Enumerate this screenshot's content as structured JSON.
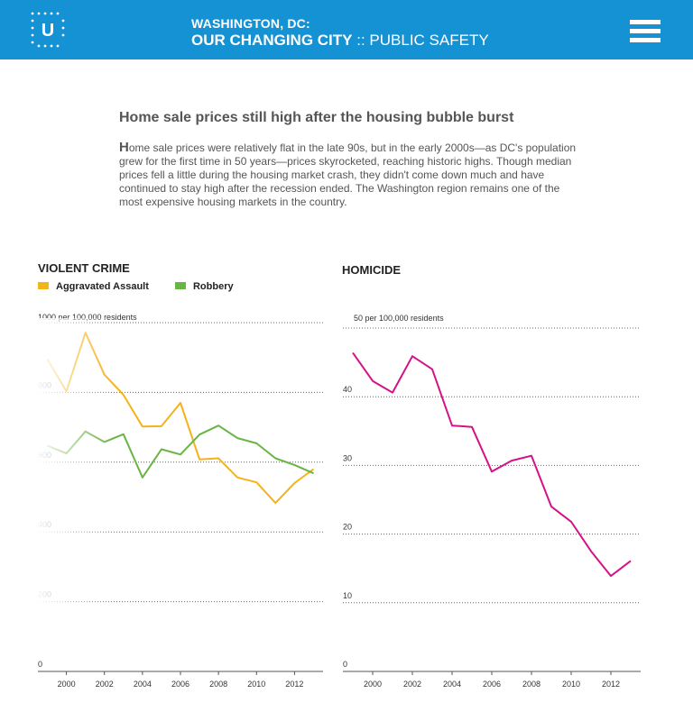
{
  "header": {
    "logo_letter": "U",
    "line1": "WASHINGTON, DC:",
    "line2_bold": "OUR CHANGING CITY",
    "line2_sep": " :: ",
    "line2_section": "PUBLIC SAFETY",
    "menu_icon": "hamburger-icon"
  },
  "article": {
    "title": "Home sale prices still high after the housing bubble burst",
    "dropcap": "H",
    "body": "ome sale prices were relatively flat in the late 90s, but in the early 2000s—as DC's population grew for the first time in 50 years—prices skyrocketed, reaching historic highs. Though median prices fell a little during the housing market crash, they didn't come down much and have continued to stay high after the recession ended. The Washington region remains one of the most expensive housing markets in the country."
  },
  "chart_data": [
    {
      "type": "line",
      "title": "VIOLENT CRIME",
      "ylabel": "1000 per 100,000 residents",
      "ylim": [
        0,
        1000
      ],
      "yticks": [
        "0",
        "200",
        "400",
        "600",
        "800"
      ],
      "xticks": [
        "2000",
        "2002",
        "2004",
        "2006",
        "2008",
        "2010",
        "2012"
      ],
      "xlim": [
        1998.5,
        2013.5
      ],
      "legend": "top-left",
      "series": [
        {
          "name": "Aggravated Assault",
          "color": "#f5b21b",
          "x": [
            1999,
            2000,
            2001,
            2002,
            2003,
            2004,
            2005,
            2006,
            2007,
            2008,
            2009,
            2010,
            2011,
            2012,
            2013
          ],
          "y": [
            895,
            803,
            971,
            851,
            793,
            702,
            703,
            770,
            608,
            611,
            556,
            542,
            483,
            540,
            580
          ]
        },
        {
          "name": "Robbery",
          "color": "#6ab445",
          "x": [
            1999,
            2000,
            2001,
            2002,
            2003,
            2004,
            2005,
            2006,
            2007,
            2008,
            2009,
            2010,
            2011,
            2012,
            2013
          ],
          "y": [
            647,
            625,
            688,
            658,
            680,
            556,
            637,
            622,
            679,
            705,
            669,
            654,
            611,
            592,
            568
          ]
        }
      ]
    },
    {
      "type": "line",
      "title": "HOMICIDE",
      "ylabel": "50 per 100,000 residents",
      "ylim": [
        0,
        50
      ],
      "yticks": [
        "0",
        "10",
        "20",
        "30",
        "40"
      ],
      "xticks": [
        "2000",
        "2002",
        "2004",
        "2006",
        "2008",
        "2010",
        "2012"
      ],
      "xlim": [
        1998.5,
        2013.5
      ],
      "series": [
        {
          "name": "",
          "color": "#d41287",
          "x": [
            1999,
            2000,
            2001,
            2002,
            2003,
            2004,
            2005,
            2006,
            2007,
            2008,
            2009,
            2010,
            2011,
            2012,
            2013
          ],
          "y": [
            46.4,
            42.3,
            40.6,
            45.9,
            44.0,
            35.8,
            35.6,
            29.1,
            30.7,
            31.4,
            24.0,
            21.8,
            17.5,
            13.9,
            16.1
          ]
        }
      ]
    }
  ]
}
